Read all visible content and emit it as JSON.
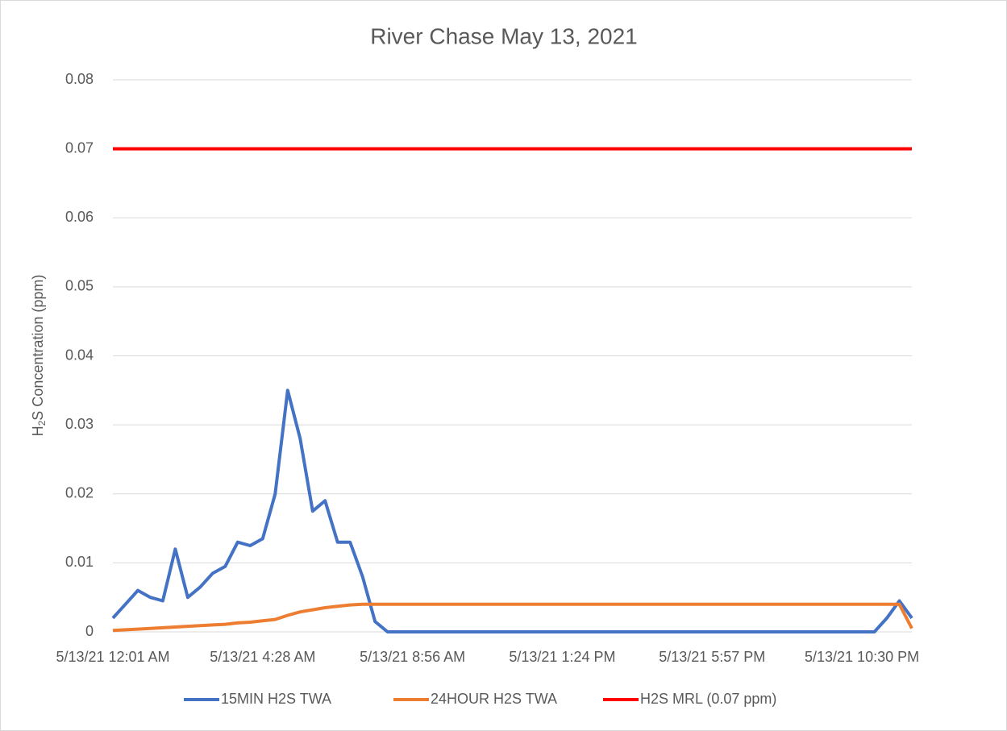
{
  "chart_data": {
    "type": "line",
    "title": "River Chase May 13, 2021",
    "y_label": {
      "main": "H",
      "sub": "2",
      "rest": "S Concentration (ppm)"
    },
    "categories": [
      "5/13/21 12:01 AM",
      null,
      null,
      null,
      null,
      null,
      null,
      null,
      null,
      null,
      null,
      null,
      "5/13/21 4:28 AM",
      null,
      null,
      null,
      null,
      null,
      null,
      null,
      null,
      null,
      null,
      null,
      "5/13/21 8:56 AM",
      null,
      null,
      null,
      null,
      null,
      null,
      null,
      null,
      null,
      null,
      null,
      "5/13/21 1:24 PM",
      null,
      null,
      null,
      null,
      null,
      null,
      null,
      null,
      null,
      null,
      null,
      "5/13/21 5:57 PM",
      null,
      null,
      null,
      null,
      null,
      null,
      null,
      null,
      null,
      null,
      null,
      "5/13/21 10:30 PM",
      null,
      null,
      null,
      null
    ],
    "series": [
      {
        "name": "15MIN H2S TWA",
        "color": "#4472c4",
        "values": [
          0.002,
          0.004,
          0.006,
          0.005,
          0.0045,
          0.012,
          0.005,
          0.0065,
          0.0085,
          0.0095,
          0.013,
          0.0125,
          0.0135,
          0.02,
          0.035,
          0.028,
          0.0175,
          0.019,
          0.013,
          0.013,
          0.008,
          0.0015,
          0,
          0,
          0,
          0,
          0,
          0,
          0,
          0,
          0,
          0,
          0,
          0,
          0,
          0,
          0,
          0,
          0,
          0,
          0,
          0,
          0,
          0,
          0,
          0,
          0,
          0,
          0,
          0,
          0,
          0,
          0,
          0,
          0,
          0,
          0,
          0,
          0,
          0,
          0,
          0,
          0.002,
          0.0045,
          0.002
        ]
      },
      {
        "name": "24HOUR H2S TWA",
        "color": "#ed7d31",
        "values": [
          0.0002,
          0.0003,
          0.0004,
          0.0005,
          0.0006,
          0.0007,
          0.0008,
          0.0009,
          0.001,
          0.0011,
          0.0013,
          0.0014,
          0.0016,
          0.0018,
          0.0024,
          0.0029,
          0.0032,
          0.0035,
          0.0037,
          0.0039,
          0.004,
          0.004,
          0.004,
          0.004,
          0.004,
          0.004,
          0.004,
          0.004,
          0.004,
          0.004,
          0.004,
          0.004,
          0.004,
          0.004,
          0.004,
          0.004,
          0.004,
          0.004,
          0.004,
          0.004,
          0.004,
          0.004,
          0.004,
          0.004,
          0.004,
          0.004,
          0.004,
          0.004,
          0.004,
          0.004,
          0.004,
          0.004,
          0.004,
          0.004,
          0.004,
          0.004,
          0.004,
          0.004,
          0.004,
          0.004,
          0.004,
          0.004,
          0.004,
          0.004,
          0.0005
        ]
      },
      {
        "name": "H2S MRL (0.07 ppm)",
        "color": "#ff0000",
        "values": [
          0.07,
          0.07,
          0.07,
          0.07,
          0.07,
          0.07,
          0.07,
          0.07,
          0.07,
          0.07,
          0.07,
          0.07,
          0.07,
          0.07,
          0.07,
          0.07,
          0.07,
          0.07,
          0.07,
          0.07,
          0.07,
          0.07,
          0.07,
          0.07,
          0.07,
          0.07,
          0.07,
          0.07,
          0.07,
          0.07,
          0.07,
          0.07,
          0.07,
          0.07,
          0.07,
          0.07,
          0.07,
          0.07,
          0.07,
          0.07,
          0.07,
          0.07,
          0.07,
          0.07,
          0.07,
          0.07,
          0.07,
          0.07,
          0.07,
          0.07,
          0.07,
          0.07,
          0.07,
          0.07,
          0.07,
          0.07,
          0.07,
          0.07,
          0.07,
          0.07,
          0.07,
          0.07,
          0.07,
          0.07,
          0.07
        ]
      }
    ],
    "ylim": [
      0,
      0.08
    ],
    "yticks": [
      0,
      0.01,
      0.02,
      0.03,
      0.04,
      0.05,
      0.06,
      0.07,
      0.08
    ],
    "grid": true,
    "legend": "bottom"
  }
}
